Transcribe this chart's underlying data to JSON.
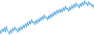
{
  "values": [
    60,
    55,
    62,
    58,
    64,
    57,
    66,
    60,
    58,
    54,
    61,
    56,
    63,
    59,
    65,
    60,
    62,
    57,
    64,
    59,
    66,
    61,
    68,
    63,
    70,
    65,
    72,
    67,
    74,
    69,
    76,
    71,
    73,
    68,
    75,
    70,
    77,
    72,
    79,
    74,
    81,
    76,
    83,
    78,
    80,
    75,
    82,
    77,
    84,
    79,
    86,
    81,
    88,
    83,
    90,
    85,
    91,
    86,
    92,
    87,
    94,
    89,
    96,
    91,
    93,
    88,
    95,
    90,
    97,
    92,
    99,
    94,
    101,
    96,
    98,
    93,
    100,
    95,
    102,
    97,
    104,
    99,
    101,
    96,
    103,
    98,
    100,
    95,
    98,
    93
  ],
  "line_color": "#4da6e0",
  "background_color": "#ffffff",
  "linewidth": 0.7
}
